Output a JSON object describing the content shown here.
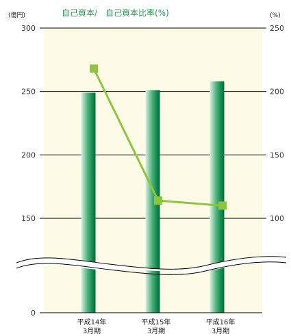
{
  "chart_data": {
    "type": "bar",
    "title": "",
    "legend_label": "自己資本/　自己資本比率(%)",
    "y_left": {
      "unit": "(億円)",
      "ticks": [
        "300",
        "250",
        "200",
        "150",
        "0"
      ],
      "ylim": [
        0,
        300
      ],
      "axis_break": "between 0 and 150"
    },
    "y_right": {
      "unit": "(%)",
      "ticks": [
        "250",
        "200",
        "150",
        "100"
      ],
      "ylim": [
        75,
        250
      ]
    },
    "categories": [
      {
        "line1": "平成14年",
        "line2": "3月期"
      },
      {
        "line1": "平成15年",
        "line2": "3月期"
      },
      {
        "line1": "平成16年",
        "line2": "3月期"
      }
    ],
    "series": [
      {
        "type": "bar",
        "axis": "left",
        "values": [
          249,
          251,
          258
        ],
        "color": "#0e8a4f"
      },
      {
        "type": "line",
        "axis": "right",
        "values": [
          218,
          114,
          110
        ],
        "color": "#8cc63f"
      }
    ],
    "grid": true,
    "plot_background": "#fdfae6"
  }
}
